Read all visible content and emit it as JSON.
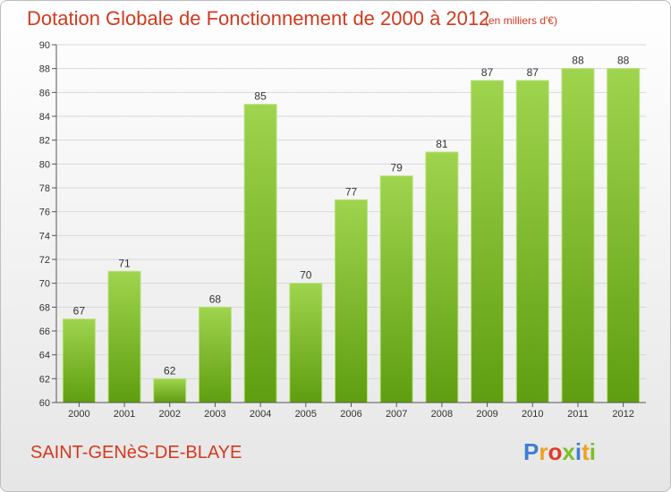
{
  "header": {
    "title": "Dotation Globale de Fonctionnement de 2000 à 2012",
    "subtitle": "(en milliers d'€)"
  },
  "footer": {
    "town": "SAINT-GENèS-DE-BLAYE",
    "logo_letters": [
      "P",
      "r",
      "o",
      "x",
      "i",
      "t",
      "i"
    ]
  },
  "colors": {
    "title": "#d23a1e",
    "bar_top": "#9fd44e",
    "bar_bottom": "#5f9e10",
    "logo": [
      "#3d7fd0",
      "#f0a020",
      "#e03a2a",
      "#7bbf2a",
      "#3d7fd0",
      "#f0a020",
      "#7bbf2a"
    ]
  },
  "chart_data": {
    "type": "bar",
    "categories": [
      "2000",
      "2001",
      "2002",
      "2003",
      "2004",
      "2005",
      "2006",
      "2007",
      "2008",
      "2009",
      "2010",
      "2011",
      "2012"
    ],
    "values": [
      67,
      71,
      62,
      68,
      85,
      70,
      77,
      79,
      81,
      87,
      87,
      88,
      88
    ],
    "ylim": [
      60,
      90
    ],
    "yticks": [
      60,
      62,
      64,
      66,
      68,
      70,
      72,
      74,
      76,
      78,
      80,
      82,
      84,
      86,
      88,
      90
    ],
    "grid": true,
    "legend": "none"
  }
}
